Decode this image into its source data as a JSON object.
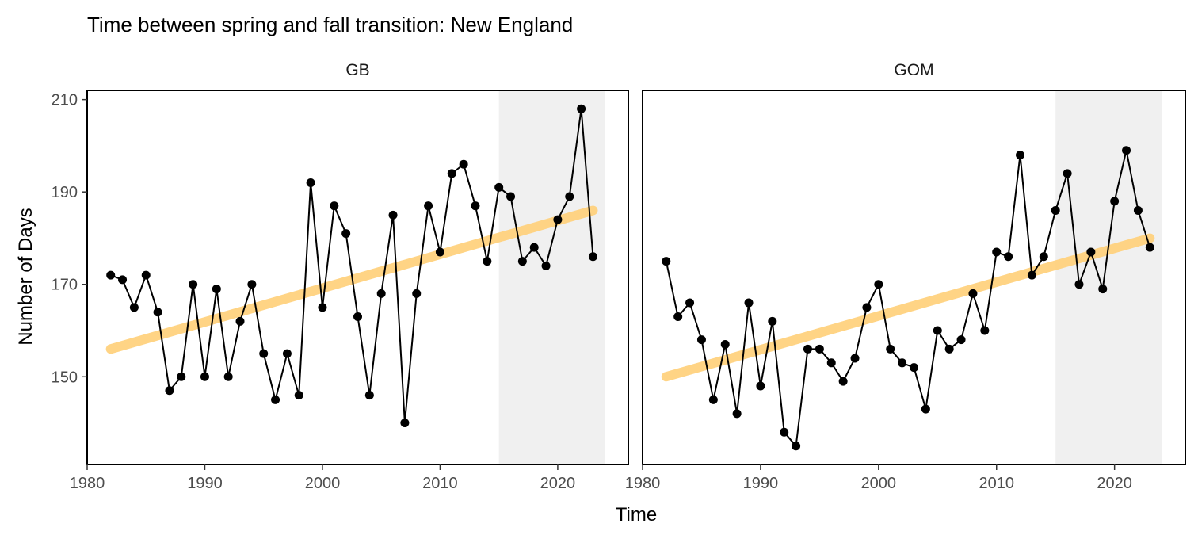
{
  "chart_data": {
    "type": "line",
    "title": "Time between spring and fall transition: New England",
    "xlabel": "Time",
    "ylabel": "Number of Days",
    "xlim": [
      1980,
      2026
    ],
    "ylim": [
      131,
      212
    ],
    "x_ticks": [
      1980,
      1990,
      2000,
      2010,
      2020
    ],
    "y_ticks": [
      150,
      170,
      190,
      210
    ],
    "grid": false,
    "shaded_period": [
      2015,
      2024
    ],
    "colors": {
      "series": "#000000",
      "trend": "#FFD27F",
      "shade": "#F0F0F0",
      "panel_border": "#000000"
    },
    "panels": [
      {
        "label": "GB",
        "x": [
          1982,
          1983,
          1984,
          1985,
          1986,
          1987,
          1988,
          1989,
          1990,
          1991,
          1992,
          1993,
          1994,
          1995,
          1996,
          1997,
          1998,
          1999,
          2000,
          2001,
          2002,
          2003,
          2004,
          2005,
          2006,
          2007,
          2008,
          2009,
          2010,
          2011,
          2012,
          2013,
          2014,
          2015,
          2016,
          2017,
          2018,
          2019,
          2020,
          2021,
          2022,
          2023
        ],
        "values": [
          172,
          171,
          165,
          172,
          164,
          147,
          150,
          170,
          150,
          169,
          150,
          162,
          170,
          155,
          145,
          155,
          146,
          192,
          165,
          187,
          181,
          163,
          146,
          168,
          185,
          140,
          168,
          187,
          177,
          194,
          196,
          187,
          175,
          191,
          189,
          175,
          178,
          174,
          184,
          189,
          208,
          176
        ],
        "trend": {
          "x": [
            1982,
            2023
          ],
          "y": [
            156,
            186
          ]
        }
      },
      {
        "label": "GOM",
        "x": [
          1982,
          1983,
          1984,
          1985,
          1986,
          1987,
          1988,
          1989,
          1990,
          1991,
          1992,
          1993,
          1994,
          1995,
          1996,
          1997,
          1998,
          1999,
          2000,
          2001,
          2002,
          2003,
          2004,
          2005,
          2006,
          2007,
          2008,
          2009,
          2010,
          2011,
          2012,
          2013,
          2014,
          2015,
          2016,
          2017,
          2018,
          2019,
          2020,
          2021,
          2022,
          2023
        ],
        "values": [
          175,
          163,
          166,
          158,
          145,
          157,
          142,
          166,
          148,
          162,
          138,
          135,
          156,
          156,
          153,
          149,
          154,
          165,
          170,
          156,
          153,
          152,
          143,
          160,
          156,
          158,
          168,
          160,
          177,
          176,
          198,
          172,
          176,
          186,
          194,
          170,
          177,
          169,
          188,
          199,
          186,
          178
        ],
        "trend": {
          "x": [
            1982,
            2023
          ],
          "y": [
            150,
            180
          ]
        }
      }
    ]
  }
}
